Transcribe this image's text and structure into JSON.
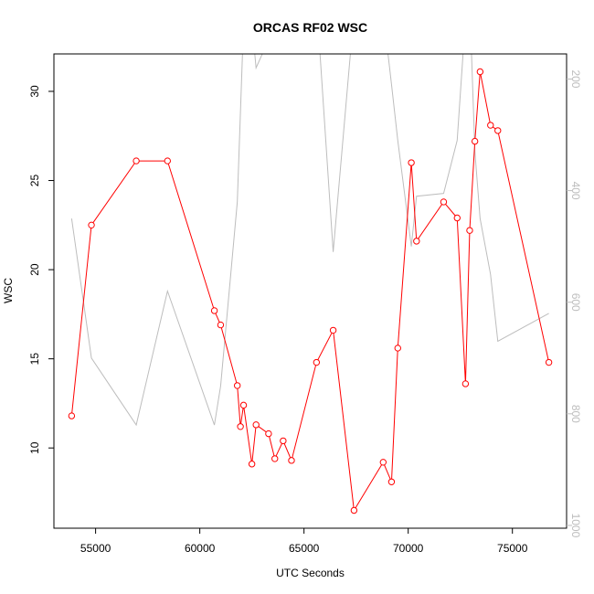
{
  "chart_data": {
    "type": "line",
    "title": "ORCAS RF02 WSC",
    "xlabel": "UTC Seconds",
    "ylabel": "WSC",
    "xlim": [
      53000,
      77600
    ],
    "ylim": [
      5.5,
      32.1
    ],
    "y2lim": [
      1005,
      155
    ],
    "y2_reversed": true,
    "x_ticks": [
      55000,
      60000,
      65000,
      70000,
      75000
    ],
    "y_ticks": [
      10,
      15,
      20,
      25,
      30
    ],
    "y2_ticks": [
      200,
      400,
      600,
      800,
      1000
    ],
    "grid": false,
    "series": [
      {
        "axis": "left",
        "color": "#ff0000",
        "marker": "circle",
        "x": [
          53850,
          54800,
          56950,
          58450,
          60700,
          61000,
          61800,
          61950,
          62100,
          62500,
          62700,
          63300,
          63600,
          64000,
          64400,
          65600,
          66400,
          67400,
          68800,
          69200,
          69500,
          70150,
          70400,
          71700,
          72350,
          72750,
          72950,
          73200,
          73450,
          73950,
          74300,
          76750
        ],
        "y": [
          11.8,
          22.5,
          26.1,
          26.1,
          17.7,
          16.9,
          13.5,
          11.2,
          12.4,
          9.1,
          11.3,
          10.8,
          9.4,
          10.4,
          9.3,
          14.8,
          16.6,
          6.5,
          9.2,
          8.1,
          15.6,
          26.0,
          21.6,
          23.8,
          22.9,
          13.6,
          22.2,
          27.2,
          31.1,
          28.1,
          27.8,
          14.8
        ]
      },
      {
        "axis": "right",
        "color": "#bdbdbd",
        "marker": "none",
        "x": [
          53850,
          54800,
          56950,
          58450,
          60700,
          61000,
          61800,
          62100,
          62500,
          62700,
          63300,
          63600,
          64000,
          64400,
          65600,
          66400,
          67400,
          68800,
          69200,
          69500,
          70150,
          70400,
          71700,
          72350,
          72750,
          72950,
          73200,
          73450,
          73950,
          74300,
          76750
        ],
        "y": [
          450,
          700,
          820,
          580,
          820,
          750,
          420,
          100,
          100,
          180,
          130,
          100,
          90,
          140,
          60,
          510,
          80,
          80,
          210,
          310,
          500,
          410,
          405,
          310,
          90,
          60,
          330,
          450,
          550,
          670,
          620
        ]
      }
    ]
  }
}
